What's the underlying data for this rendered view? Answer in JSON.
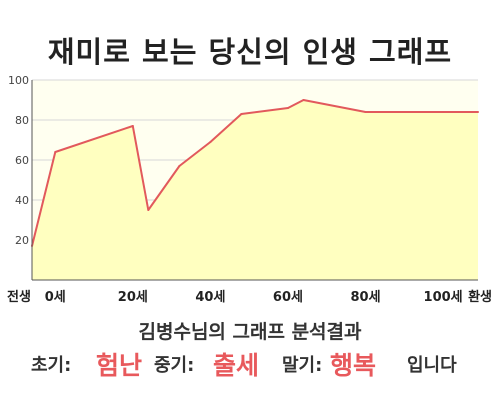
{
  "title": "재미로 보는 당신의 인생 그래프",
  "chart_data": {
    "type": "area",
    "categories": [
      "전생",
      "0세",
      "20세",
      "40세",
      "60세",
      "80세",
      "100세",
      "환생"
    ],
    "x": [
      -6,
      0,
      20,
      24,
      32,
      40,
      48,
      60,
      64,
      80,
      100,
      109
    ],
    "values": [
      17,
      64,
      77,
      35,
      57,
      69,
      83,
      86,
      90,
      84,
      84,
      84
    ],
    "xlim": [
      -6,
      109
    ],
    "ylim": [
      0,
      100
    ],
    "yticks": [
      20,
      40,
      60,
      80,
      100
    ],
    "grid": true,
    "colors": {
      "line": "#e2595c",
      "fill": "#ffffc0",
      "plot_bg": "#fffff0",
      "grid": "#d7d7d7"
    }
  },
  "summary": "김병수님의 그래프 분석결과",
  "result": {
    "early_label": "초기:",
    "early_value": "험난",
    "mid_label": "중기:",
    "mid_value": "출세",
    "late_label": "말기:",
    "late_value": "행복",
    "suffix": "입니다"
  }
}
